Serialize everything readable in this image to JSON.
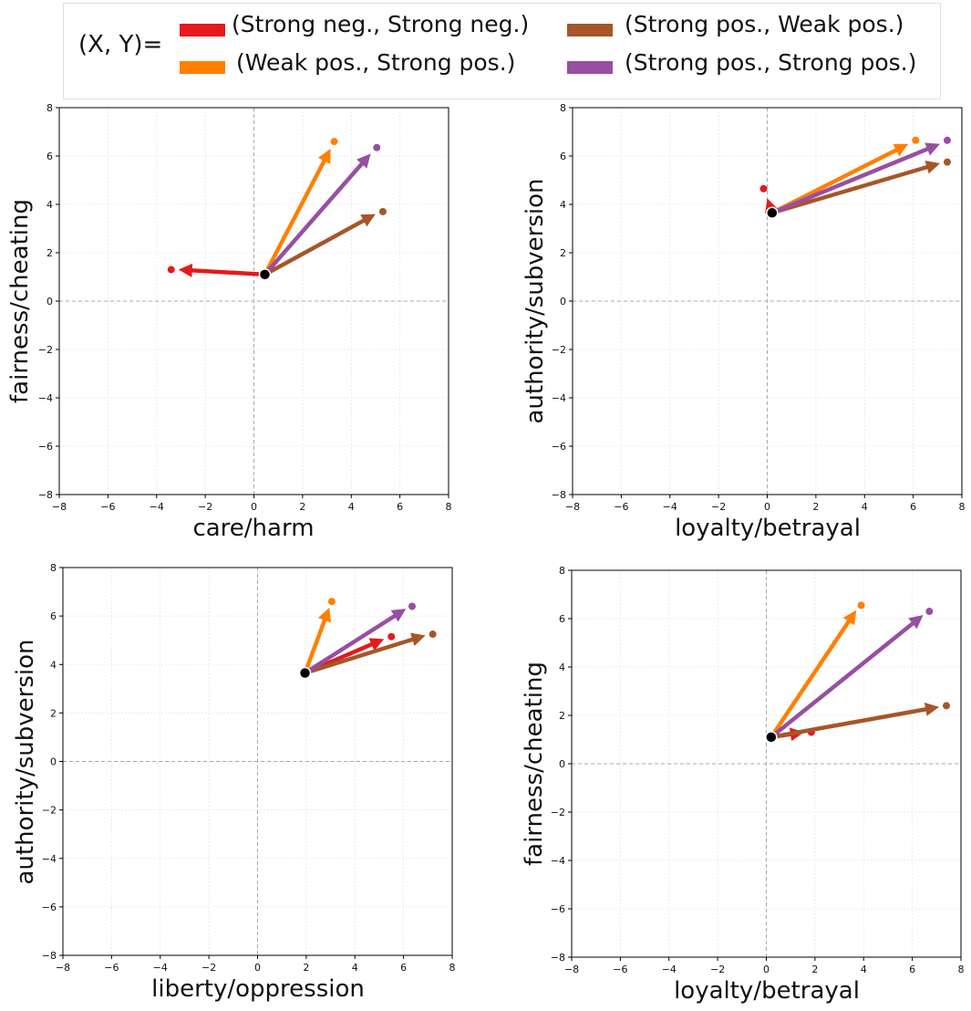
{
  "legend": {
    "prefix": "(X, Y)=",
    "entries": [
      {
        "label": "(Strong neg., Strong neg.)",
        "color": "#e41a1c"
      },
      {
        "label": "(Weak pos., Strong pos.)",
        "color": "#ff7f00"
      },
      {
        "label": "(Strong pos., Weak pos.)",
        "color": "#a65628"
      },
      {
        "label": "(Strong pos., Strong pos.)",
        "color": "#984ea3"
      }
    ]
  },
  "chart_data": [
    {
      "type": "quiver",
      "xlabel": "care/harm",
      "ylabel": "fairness/cheating",
      "xlim": [
        -8,
        8
      ],
      "ylim": [
        -8,
        8
      ],
      "ticks": [
        -8,
        -6,
        -4,
        -2,
        0,
        2,
        4,
        6,
        8
      ],
      "origin": [
        0.45,
        1.1
      ],
      "arrows": [
        {
          "series": "(Strong neg., Strong neg.)",
          "color": "#e41a1c",
          "tip": [
            -3.1,
            1.3
          ],
          "end": [
            -3.4,
            1.3
          ]
        },
        {
          "series": "(Weak pos., Strong pos.)",
          "color": "#ff7f00",
          "tip": [
            3.15,
            6.3
          ],
          "end": [
            3.3,
            6.6
          ]
        },
        {
          "series": "(Strong pos., Weak pos.)",
          "color": "#a65628",
          "tip": [
            5.0,
            3.6
          ],
          "end": [
            5.3,
            3.7
          ]
        },
        {
          "series": "(Strong pos., Strong pos.)",
          "color": "#984ea3",
          "tip": [
            4.8,
            6.1
          ],
          "end": [
            5.05,
            6.35
          ]
        }
      ]
    },
    {
      "type": "quiver",
      "xlabel": "loyalty/betrayal",
      "ylabel": "authority/subversion",
      "xlim": [
        -8,
        8
      ],
      "ylim": [
        -8,
        8
      ],
      "ticks": [
        -8,
        -6,
        -4,
        -2,
        0,
        2,
        4,
        6,
        8
      ],
      "origin": [
        0.2,
        3.65
      ],
      "arrows": [
        {
          "series": "(Strong neg., Strong neg.)",
          "color": "#e41a1c",
          "tip": [
            0.0,
            4.25
          ],
          "end": [
            -0.15,
            4.65
          ]
        },
        {
          "series": "(Weak pos., Strong pos.)",
          "color": "#ff7f00",
          "tip": [
            5.8,
            6.5
          ],
          "end": [
            6.1,
            6.65
          ]
        },
        {
          "series": "(Strong pos., Weak pos.)",
          "color": "#a65628",
          "tip": [
            7.1,
            5.7
          ],
          "end": [
            7.4,
            5.75
          ]
        },
        {
          "series": "(Strong pos., Strong pos.)",
          "color": "#984ea3",
          "tip": [
            7.1,
            6.5
          ],
          "end": [
            7.4,
            6.65
          ]
        }
      ]
    },
    {
      "type": "quiver",
      "xlabel": "liberty/oppression",
      "ylabel": "authority/subversion",
      "xlim": [
        -8,
        8
      ],
      "ylim": [
        -8,
        8
      ],
      "ticks": [
        -8,
        -6,
        -4,
        -2,
        0,
        2,
        4,
        6,
        8
      ],
      "origin": [
        1.95,
        3.65
      ],
      "arrows": [
        {
          "series": "(Strong neg., Strong neg.)",
          "color": "#e41a1c",
          "tip": [
            5.2,
            5.05
          ],
          "end": [
            5.5,
            5.15
          ]
        },
        {
          "series": "(Weak pos., Strong pos.)",
          "color": "#ff7f00",
          "tip": [
            2.95,
            6.35
          ],
          "end": [
            3.05,
            6.6
          ]
        },
        {
          "series": "(Strong pos., Weak pos.)",
          "color": "#a65628",
          "tip": [
            6.9,
            5.2
          ],
          "end": [
            7.2,
            5.25
          ]
        },
        {
          "series": "(Strong pos., Strong pos.)",
          "color": "#984ea3",
          "tip": [
            6.1,
            6.3
          ],
          "end": [
            6.35,
            6.4
          ]
        }
      ]
    },
    {
      "type": "quiver",
      "xlabel": "loyalty/betrayal",
      "ylabel": "fairness/cheating",
      "xlim": [
        -8,
        8
      ],
      "ylim": [
        -8,
        8
      ],
      "ticks": [
        -8,
        -6,
        -4,
        -2,
        0,
        2,
        4,
        6,
        8
      ],
      "origin": [
        0.2,
        1.1
      ],
      "arrows": [
        {
          "series": "(Strong neg., Strong neg.)",
          "color": "#e41a1c",
          "tip": [
            1.55,
            1.3
          ],
          "end": [
            1.85,
            1.3
          ]
        },
        {
          "series": "(Weak pos., Strong pos.)",
          "color": "#ff7f00",
          "tip": [
            3.7,
            6.35
          ],
          "end": [
            3.9,
            6.55
          ]
        },
        {
          "series": "(Strong pos., Weak pos.)",
          "color": "#a65628",
          "tip": [
            7.1,
            2.35
          ],
          "end": [
            7.4,
            2.4
          ]
        },
        {
          "series": "(Strong pos., Strong pos.)",
          "color": "#984ea3",
          "tip": [
            6.45,
            6.15
          ],
          "end": [
            6.7,
            6.3
          ]
        }
      ]
    }
  ]
}
